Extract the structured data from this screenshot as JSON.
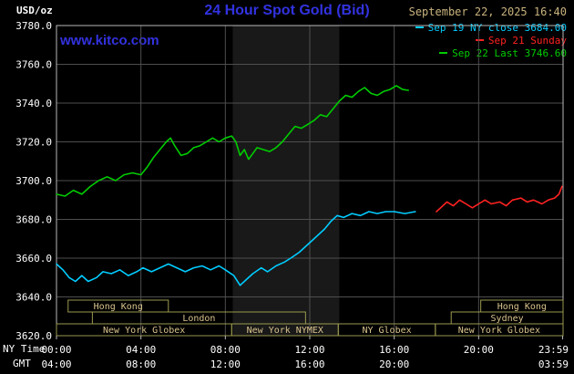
{
  "header": {
    "units_label": "USD/oz",
    "title": "24 Hour Spot Gold (Bid)",
    "datetime": "September 22, 2025 16:40",
    "watermark": "www.kitco.com",
    "legend": [
      {
        "id": "sep19",
        "label": "Sep 19 NY close 3684.00",
        "color": "#00ccff"
      },
      {
        "id": "sep21",
        "label": "Sep 21 Sunday",
        "color": "#ff2222"
      },
      {
        "id": "sep22",
        "label": "Sep 22 Last 3746.60",
        "color": "#00cc00"
      }
    ]
  },
  "colors": {
    "background": "#000000",
    "plot_border": "#b9b9b9",
    "grid": "#4e4e4e",
    "band": "#191919",
    "tick_text": "#ffffff",
    "axis_text": "#ffffff",
    "session_border": "#99994f",
    "session_text": "#d9c38c",
    "brand_blue": "#3232e0",
    "date_tan": "#c9b37e"
  },
  "axes": {
    "ny_label": "NY Time",
    "gmt_label": "GMT",
    "y_ticks": [
      {
        "label": "3780.0",
        "value": 3780
      },
      {
        "label": "3760.0",
        "value": 3760
      },
      {
        "label": "3740.0",
        "value": 3740
      },
      {
        "label": "3720.0",
        "value": 3720
      },
      {
        "label": "3700.0",
        "value": 3700
      },
      {
        "label": "3680.0",
        "value": 3680
      },
      {
        "label": "3660.0",
        "value": 3660
      },
      {
        "label": "3640.0",
        "value": 3640
      },
      {
        "label": "3620.0",
        "value": 3620
      }
    ],
    "x_ticks_ny": [
      {
        "label": "00:00",
        "hour": 0
      },
      {
        "label": "04:00",
        "hour": 4
      },
      {
        "label": "08:00",
        "hour": 8
      },
      {
        "label": "12:00",
        "hour": 12
      },
      {
        "label": "16:00",
        "hour": 16
      },
      {
        "label": "20:00",
        "hour": 20
      },
      {
        "label": "23:59",
        "hour": 23.98
      }
    ],
    "x_ticks_gmt": [
      {
        "label": "04:00",
        "hour": 0
      },
      {
        "label": "08:00",
        "hour": 4
      },
      {
        "label": "12:00",
        "hour": 8
      },
      {
        "label": "16:00",
        "hour": 12
      },
      {
        "label": "20:00",
        "hour": 16
      },
      {
        "label": "03:59",
        "hour": 23.98
      }
    ]
  },
  "sessions": {
    "rows": [
      [
        {
          "label": "Hong Kong",
          "start": 0.55,
          "end": 5.3
        },
        {
          "label": "Hong Kong",
          "start": 20.1,
          "end": 24
        }
      ],
      [
        {
          "label": "London",
          "start": 1.7,
          "end": 11.8
        },
        {
          "label": "Sydney",
          "start": 18.7,
          "end": 24
        }
      ],
      [
        {
          "label": "New York Globex",
          "start": 0,
          "end": 8.3
        },
        {
          "label": "New York NYMEX",
          "start": 8.3,
          "end": 13.35
        },
        {
          "label": "NY Globex",
          "start": 13.35,
          "end": 17.95
        },
        {
          "label": "New York Globex",
          "start": 17.95,
          "end": 24
        }
      ]
    ]
  },
  "chart_data": {
    "type": "line",
    "title": "24 Hour Spot Gold (Bid)",
    "ylabel": "USD/oz",
    "x_unit": "NY time (hours)",
    "xlim": [
      0,
      24
    ],
    "ylim": [
      3620,
      3780
    ],
    "grid": true,
    "legend_position": "top-right",
    "nymex_band_hours": [
      8.35,
      13.4
    ],
    "series": [
      {
        "id": "sep19",
        "name": "Sep 19 NY close 3684.00",
        "color": "#00ccff",
        "points": [
          [
            0,
            3657
          ],
          [
            0.3,
            3654
          ],
          [
            0.6,
            3650
          ],
          [
            0.9,
            3648
          ],
          [
            1.2,
            3651
          ],
          [
            1.5,
            3648
          ],
          [
            1.9,
            3650
          ],
          [
            2.2,
            3653
          ],
          [
            2.6,
            3652
          ],
          [
            3,
            3654
          ],
          [
            3.4,
            3651
          ],
          [
            3.8,
            3653
          ],
          [
            4.1,
            3655
          ],
          [
            4.5,
            3653
          ],
          [
            4.9,
            3655
          ],
          [
            5.3,
            3657
          ],
          [
            5.7,
            3655
          ],
          [
            6.1,
            3653
          ],
          [
            6.5,
            3655
          ],
          [
            6.9,
            3656
          ],
          [
            7.3,
            3654
          ],
          [
            7.7,
            3656
          ],
          [
            8,
            3654
          ],
          [
            8.4,
            3651
          ],
          [
            8.7,
            3646
          ],
          [
            9,
            3649
          ],
          [
            9.3,
            3652
          ],
          [
            9.7,
            3655
          ],
          [
            10,
            3653
          ],
          [
            10.4,
            3656
          ],
          [
            10.8,
            3658
          ],
          [
            11.1,
            3660
          ],
          [
            11.5,
            3663
          ],
          [
            11.9,
            3667
          ],
          [
            12.3,
            3671
          ],
          [
            12.7,
            3675
          ],
          [
            13,
            3679
          ],
          [
            13.3,
            3682
          ],
          [
            13.6,
            3681
          ],
          [
            14,
            3683
          ],
          [
            14.4,
            3682
          ],
          [
            14.8,
            3684
          ],
          [
            15.2,
            3683
          ],
          [
            15.6,
            3684
          ],
          [
            16,
            3684
          ],
          [
            16.5,
            3683
          ],
          [
            17,
            3684
          ]
        ]
      },
      {
        "id": "sep21",
        "name": "Sep 21 Sunday",
        "color": "#ff2222",
        "points": [
          [
            18,
            3684
          ],
          [
            18.2,
            3686
          ],
          [
            18.5,
            3689
          ],
          [
            18.8,
            3687
          ],
          [
            19.1,
            3690
          ],
          [
            19.4,
            3688
          ],
          [
            19.7,
            3686
          ],
          [
            20,
            3688
          ],
          [
            20.3,
            3690
          ],
          [
            20.6,
            3688
          ],
          [
            21,
            3689
          ],
          [
            21.3,
            3687
          ],
          [
            21.6,
            3690
          ],
          [
            22,
            3691
          ],
          [
            22.3,
            3689
          ],
          [
            22.6,
            3690
          ],
          [
            23,
            3688
          ],
          [
            23.3,
            3690
          ],
          [
            23.6,
            3691
          ],
          [
            23.8,
            3693
          ],
          [
            23.95,
            3697
          ]
        ]
      },
      {
        "id": "sep22",
        "name": "Sep 22 Last 3746.60",
        "color": "#00cc00",
        "points": [
          [
            0,
            3693
          ],
          [
            0.4,
            3692
          ],
          [
            0.8,
            3695
          ],
          [
            1.2,
            3693
          ],
          [
            1.6,
            3697
          ],
          [
            2,
            3700
          ],
          [
            2.4,
            3702
          ],
          [
            2.8,
            3700
          ],
          [
            3.2,
            3703
          ],
          [
            3.6,
            3704
          ],
          [
            4,
            3703
          ],
          [
            4.3,
            3707
          ],
          [
            4.6,
            3712
          ],
          [
            4.9,
            3716
          ],
          [
            5.2,
            3720
          ],
          [
            5.4,
            3722
          ],
          [
            5.6,
            3718
          ],
          [
            5.9,
            3713
          ],
          [
            6.2,
            3714
          ],
          [
            6.5,
            3717
          ],
          [
            6.8,
            3718
          ],
          [
            7.1,
            3720
          ],
          [
            7.4,
            3722
          ],
          [
            7.7,
            3720
          ],
          [
            8,
            3722
          ],
          [
            8.3,
            3723
          ],
          [
            8.5,
            3720
          ],
          [
            8.7,
            3713
          ],
          [
            8.9,
            3716
          ],
          [
            9.1,
            3711
          ],
          [
            9.3,
            3714
          ],
          [
            9.5,
            3717
          ],
          [
            9.8,
            3716
          ],
          [
            10.1,
            3715
          ],
          [
            10.4,
            3717
          ],
          [
            10.7,
            3720
          ],
          [
            11,
            3724
          ],
          [
            11.3,
            3728
          ],
          [
            11.6,
            3727
          ],
          [
            11.9,
            3729
          ],
          [
            12.2,
            3731
          ],
          [
            12.5,
            3734
          ],
          [
            12.8,
            3733
          ],
          [
            13.1,
            3737
          ],
          [
            13.4,
            3741
          ],
          [
            13.7,
            3744
          ],
          [
            14,
            3743
          ],
          [
            14.3,
            3746
          ],
          [
            14.6,
            3748
          ],
          [
            14.9,
            3745
          ],
          [
            15.2,
            3744
          ],
          [
            15.5,
            3746
          ],
          [
            15.8,
            3747
          ],
          [
            16.1,
            3749
          ],
          [
            16.4,
            3747
          ],
          [
            16.67,
            3746.6
          ]
        ]
      }
    ]
  }
}
